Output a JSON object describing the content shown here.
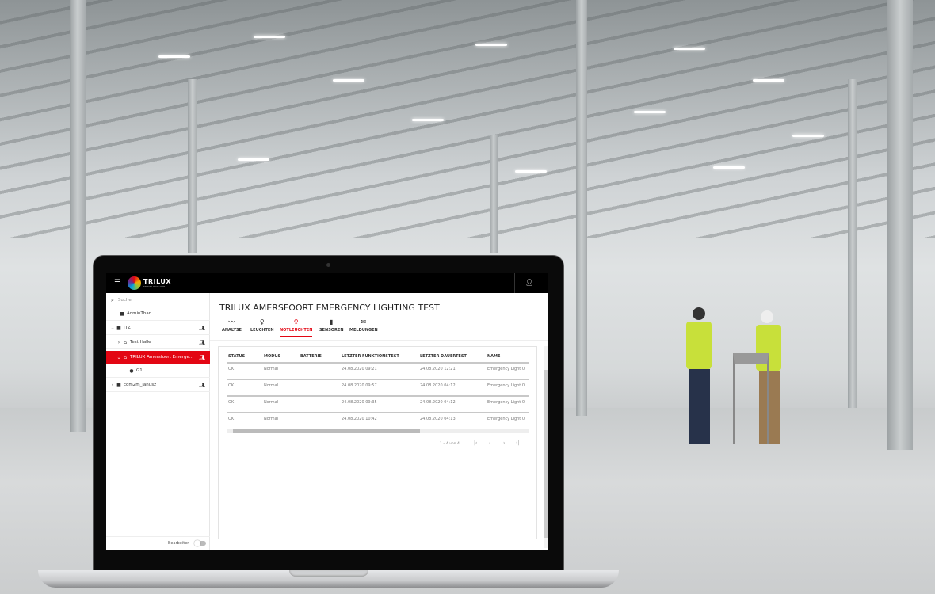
{
  "app": {
    "brand": "TRILUX",
    "tagline": "SIMPLIFY YOUR LIGHT."
  },
  "sidebar": {
    "search_placeholder": "Suche",
    "items": [
      {
        "label": "AdminThan",
        "icon": "briefcase-icon"
      },
      {
        "label": "ITZ",
        "icon": "briefcase-icon"
      },
      {
        "label": "Test Halle",
        "icon": "home-icon"
      },
      {
        "label": "TRILUX Amersfoort Emerge...",
        "icon": "home-icon",
        "selected": true
      },
      {
        "label": "G1",
        "icon": "group-icon"
      },
      {
        "label": "com2m_janusz",
        "icon": "briefcase-icon"
      }
    ],
    "edit_label": "Bearbeiten",
    "edit_toggle": false
  },
  "page": {
    "title": "TRILUX AMERSFOORT EMERGENCY LIGHTING TEST"
  },
  "tabs": [
    {
      "label": "ANALYSE",
      "icon": "chart-line-icon"
    },
    {
      "label": "LEUCHTEN",
      "icon": "bulb-icon"
    },
    {
      "label": "NOTLEUCHTEN",
      "icon": "bulb-icon",
      "active": true
    },
    {
      "label": "SENSOREN",
      "icon": "sensor-icon"
    },
    {
      "label": "MELDUNGEN",
      "icon": "mail-icon"
    }
  ],
  "table": {
    "columns": [
      "STATUS",
      "MODUS",
      "BATTERIE",
      "LETZTER FUNKTIONSTEST",
      "LETZTER DAUERTEST",
      "NAME"
    ],
    "rows": [
      [
        "OK",
        "Normal",
        "",
        "24.08.2020 09:21",
        "24.08.2020 12:21",
        "Emergency Light 0"
      ],
      [
        "OK",
        "Normal",
        "",
        "24.08.2020 09:57",
        "24.08.2020 04:12",
        "Emergency Light 0"
      ],
      [
        "OK",
        "Normal",
        "",
        "24.08.2020 09:35",
        "24.08.2020 04:12",
        "Emergency Light 0"
      ],
      [
        "OK",
        "Normal",
        "",
        "24.08.2020 10:42",
        "24.08.2020 04:13",
        "Emergency Light 0"
      ]
    ]
  },
  "paginator": {
    "range": "1 – 4 von 4"
  },
  "colors": {
    "accent": "#e30613",
    "header": "#000000"
  }
}
